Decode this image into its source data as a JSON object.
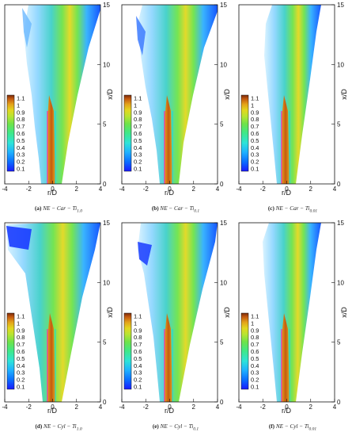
{
  "colors": {
    "colormap": [
      "#1a1aff",
      "#0a6cff",
      "#1fb2ff",
      "#2de3d9",
      "#3ee88a",
      "#6de34a",
      "#b7e432",
      "#e2d81f",
      "#e4a21a",
      "#c45a10",
      "#7a2a0a"
    ],
    "core_pink": "#ff2aa6",
    "core_cyan": "#16d4e6",
    "axis": "#111111"
  },
  "axes": {
    "x_label": "r/D",
    "y_label": "x/D",
    "x_ticks": [
      "-4",
      "-2",
      "0",
      "2",
      "4"
    ],
    "y_ticks": [
      "0",
      "5",
      "10",
      "15"
    ]
  },
  "colorbar": {
    "ticks": [
      "1.1",
      "1",
      "0.9",
      "0.8",
      "0.7",
      "0.6",
      "0.5",
      "0.4",
      "0.3",
      "0.2",
      "0.1"
    ]
  },
  "panels": [
    {
      "label": "(a)",
      "case": "NE − Car − Ti",
      "sub": "1.0"
    },
    {
      "label": "(b)",
      "case": "NE − Car − Ti",
      "sub": "0.1"
    },
    {
      "label": "(c)",
      "case": "NE − Car − Ti",
      "sub": "0.01"
    },
    {
      "label": "(d)",
      "case": "NE − Cyl − Ti",
      "sub": "1.0"
    },
    {
      "label": "(e)",
      "case": "NE − Cyl − Ti",
      "sub": "0.1"
    },
    {
      "label": "(f)",
      "case": "NE − Cyl − Ti",
      "sub": "0.01"
    }
  ]
}
